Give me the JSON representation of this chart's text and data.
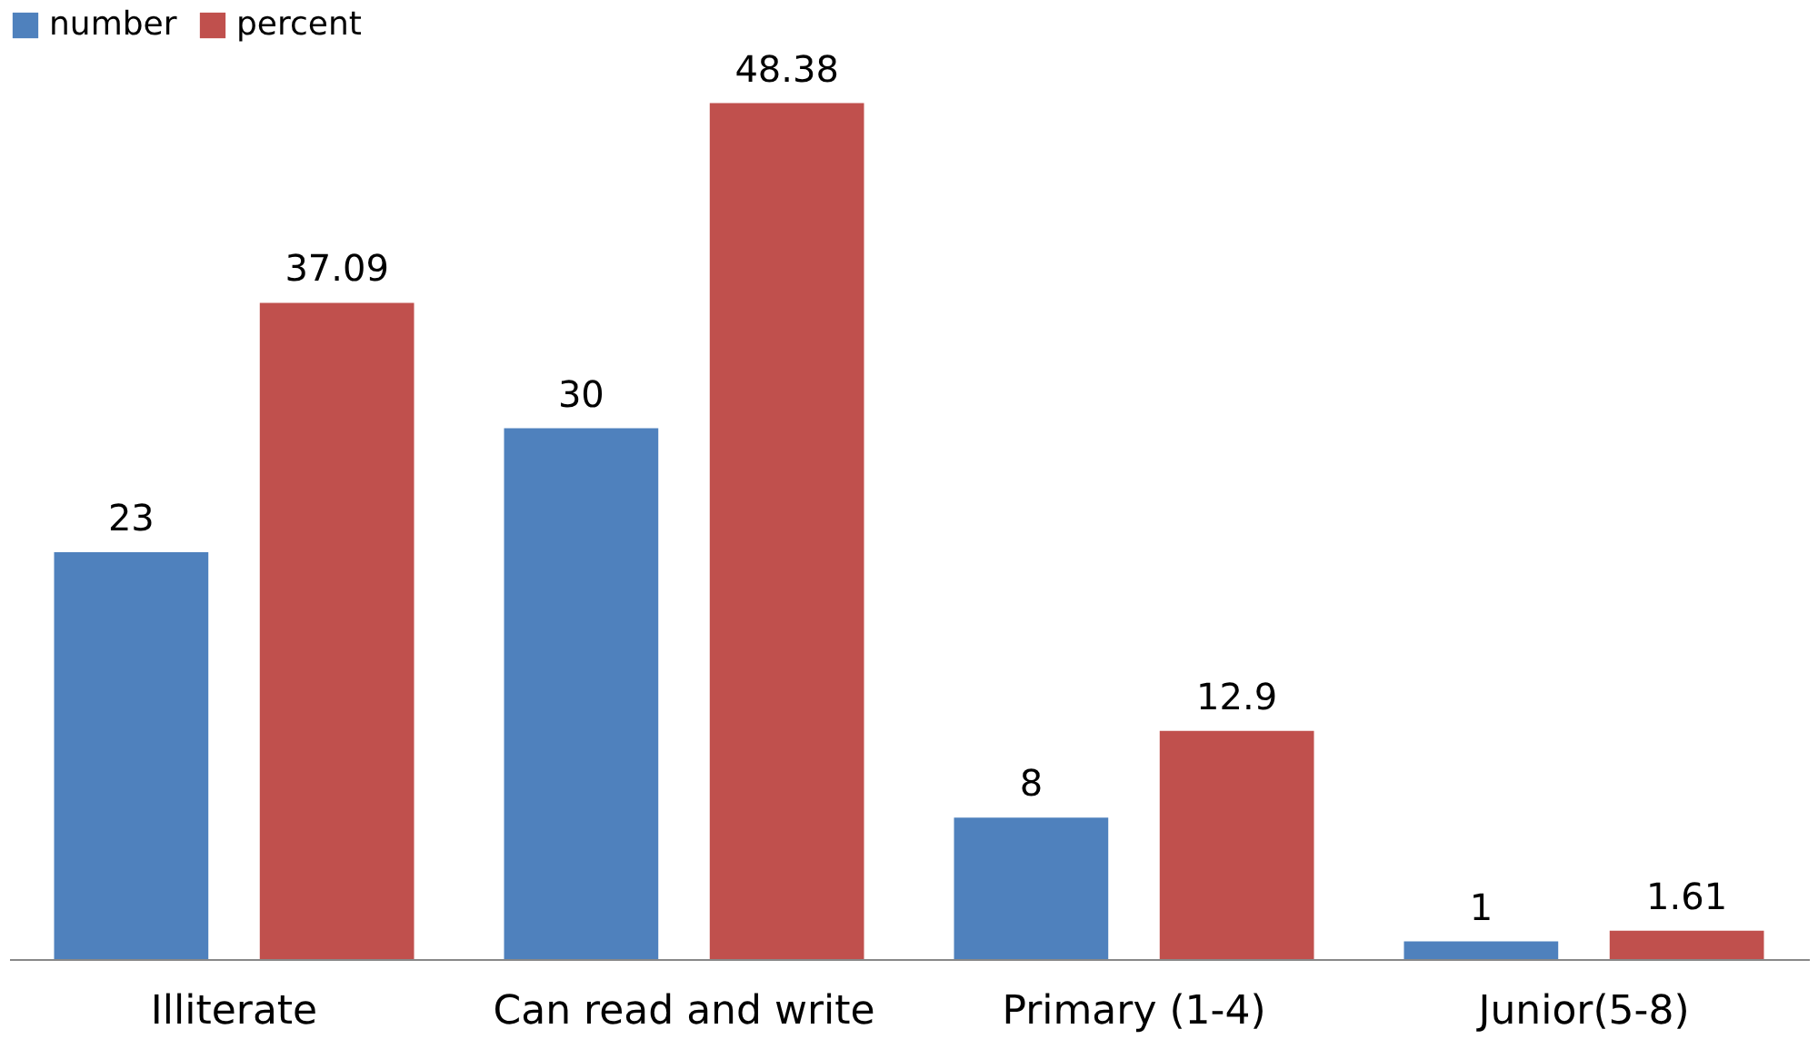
{
  "chart_data": {
    "type": "bar",
    "categories": [
      "Illiterate",
      "Can read and write",
      "Primary (1-4)",
      "Junior(5-8)"
    ],
    "series": [
      {
        "name": "number",
        "color": "#4f81bd",
        "values": [
          23,
          30,
          8,
          1
        ]
      },
      {
        "name": "percent",
        "color": "#c0504d",
        "values": [
          37.09,
          48.38,
          12.9,
          1.61
        ]
      }
    ],
    "data_labels": true,
    "legend": "top",
    "grid": false,
    "tick_labels": "x"
  }
}
